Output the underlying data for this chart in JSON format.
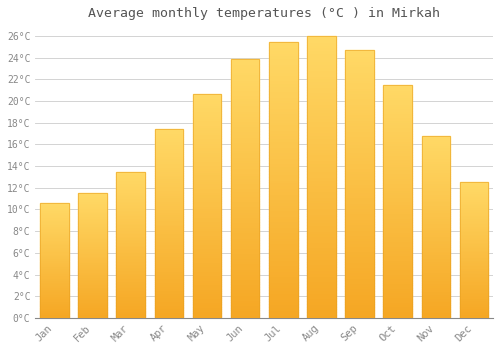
{
  "title": "Average monthly temperatures (°C ) in Mirkah",
  "months": [
    "Jan",
    "Feb",
    "Mar",
    "Apr",
    "May",
    "Jun",
    "Jul",
    "Aug",
    "Sep",
    "Oct",
    "Nov",
    "Dec"
  ],
  "values": [
    10.6,
    11.5,
    13.5,
    17.4,
    20.7,
    23.9,
    25.5,
    26.0,
    24.7,
    21.5,
    16.8,
    12.5
  ],
  "bar_color_bottom": "#F5A623",
  "bar_color_top": "#FFD966",
  "bar_edge_color": "#E8A020",
  "background_color": "#FFFFFF",
  "grid_color": "#CCCCCC",
  "title_fontsize": 9.5,
  "tick_label_color": "#888888",
  "title_color": "#555555",
  "ylim": [
    0,
    27
  ],
  "yticks": [
    0,
    2,
    4,
    6,
    8,
    10,
    12,
    14,
    16,
    18,
    20,
    22,
    24,
    26
  ],
  "figsize": [
    5.0,
    3.5
  ],
  "dpi": 100
}
